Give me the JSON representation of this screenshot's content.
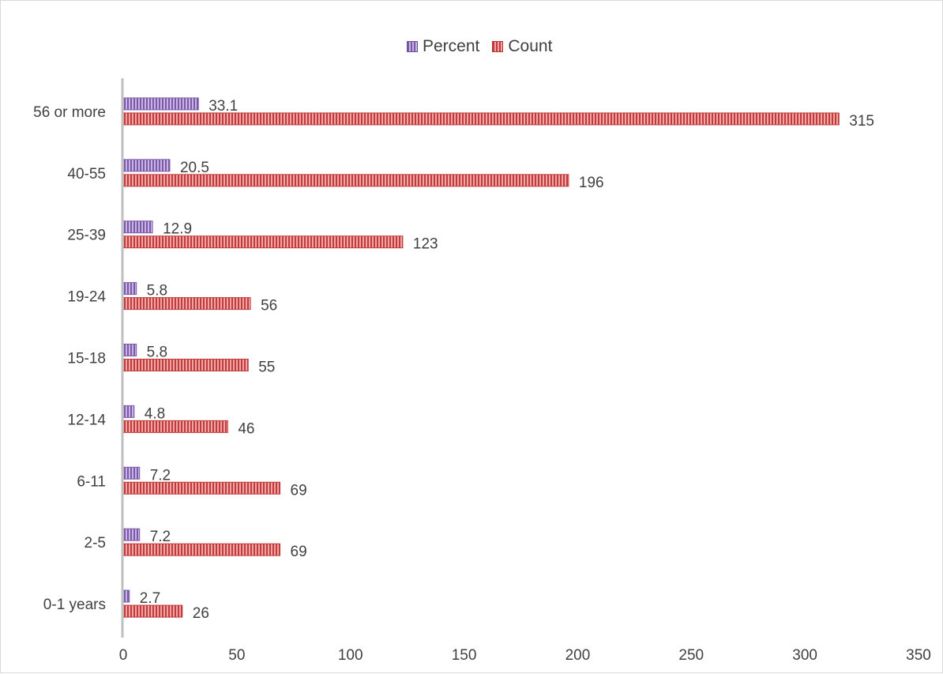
{
  "chart_data": {
    "type": "bar",
    "orientation": "horizontal",
    "categories": [
      "0-1 years",
      "2-5",
      "6-11",
      "12-14",
      "15-18",
      "19-24",
      "25-39",
      "40-55",
      "56 or more"
    ],
    "series": [
      {
        "name": "Percent",
        "values": [
          2.7,
          7.2,
          7.2,
          4.8,
          5.8,
          5.8,
          12.9,
          20.5,
          33.1
        ],
        "labels": [
          "2.7",
          "7.2",
          "7.2",
          "4.8",
          "5.8",
          "5.8",
          "12.9",
          "20.5",
          "33.1"
        ],
        "color": "#7a5aa8"
      },
      {
        "name": "Count",
        "values": [
          26,
          69,
          69,
          46,
          55,
          56,
          123,
          196,
          315
        ],
        "labels": [
          "26",
          "69",
          "69",
          "46",
          "55",
          "56",
          "123",
          "196",
          "315"
        ],
        "color": "#c23b3b"
      }
    ],
    "xlim": [
      0,
      350
    ],
    "xticks": [
      0,
      50,
      100,
      150,
      200,
      250,
      300,
      350
    ],
    "xtick_labels": [
      "0",
      "50",
      "100",
      "150",
      "200",
      "250",
      "300",
      "350"
    ],
    "title": "",
    "xlabel": "",
    "ylabel": "",
    "grid": false,
    "legend": "top-center"
  }
}
